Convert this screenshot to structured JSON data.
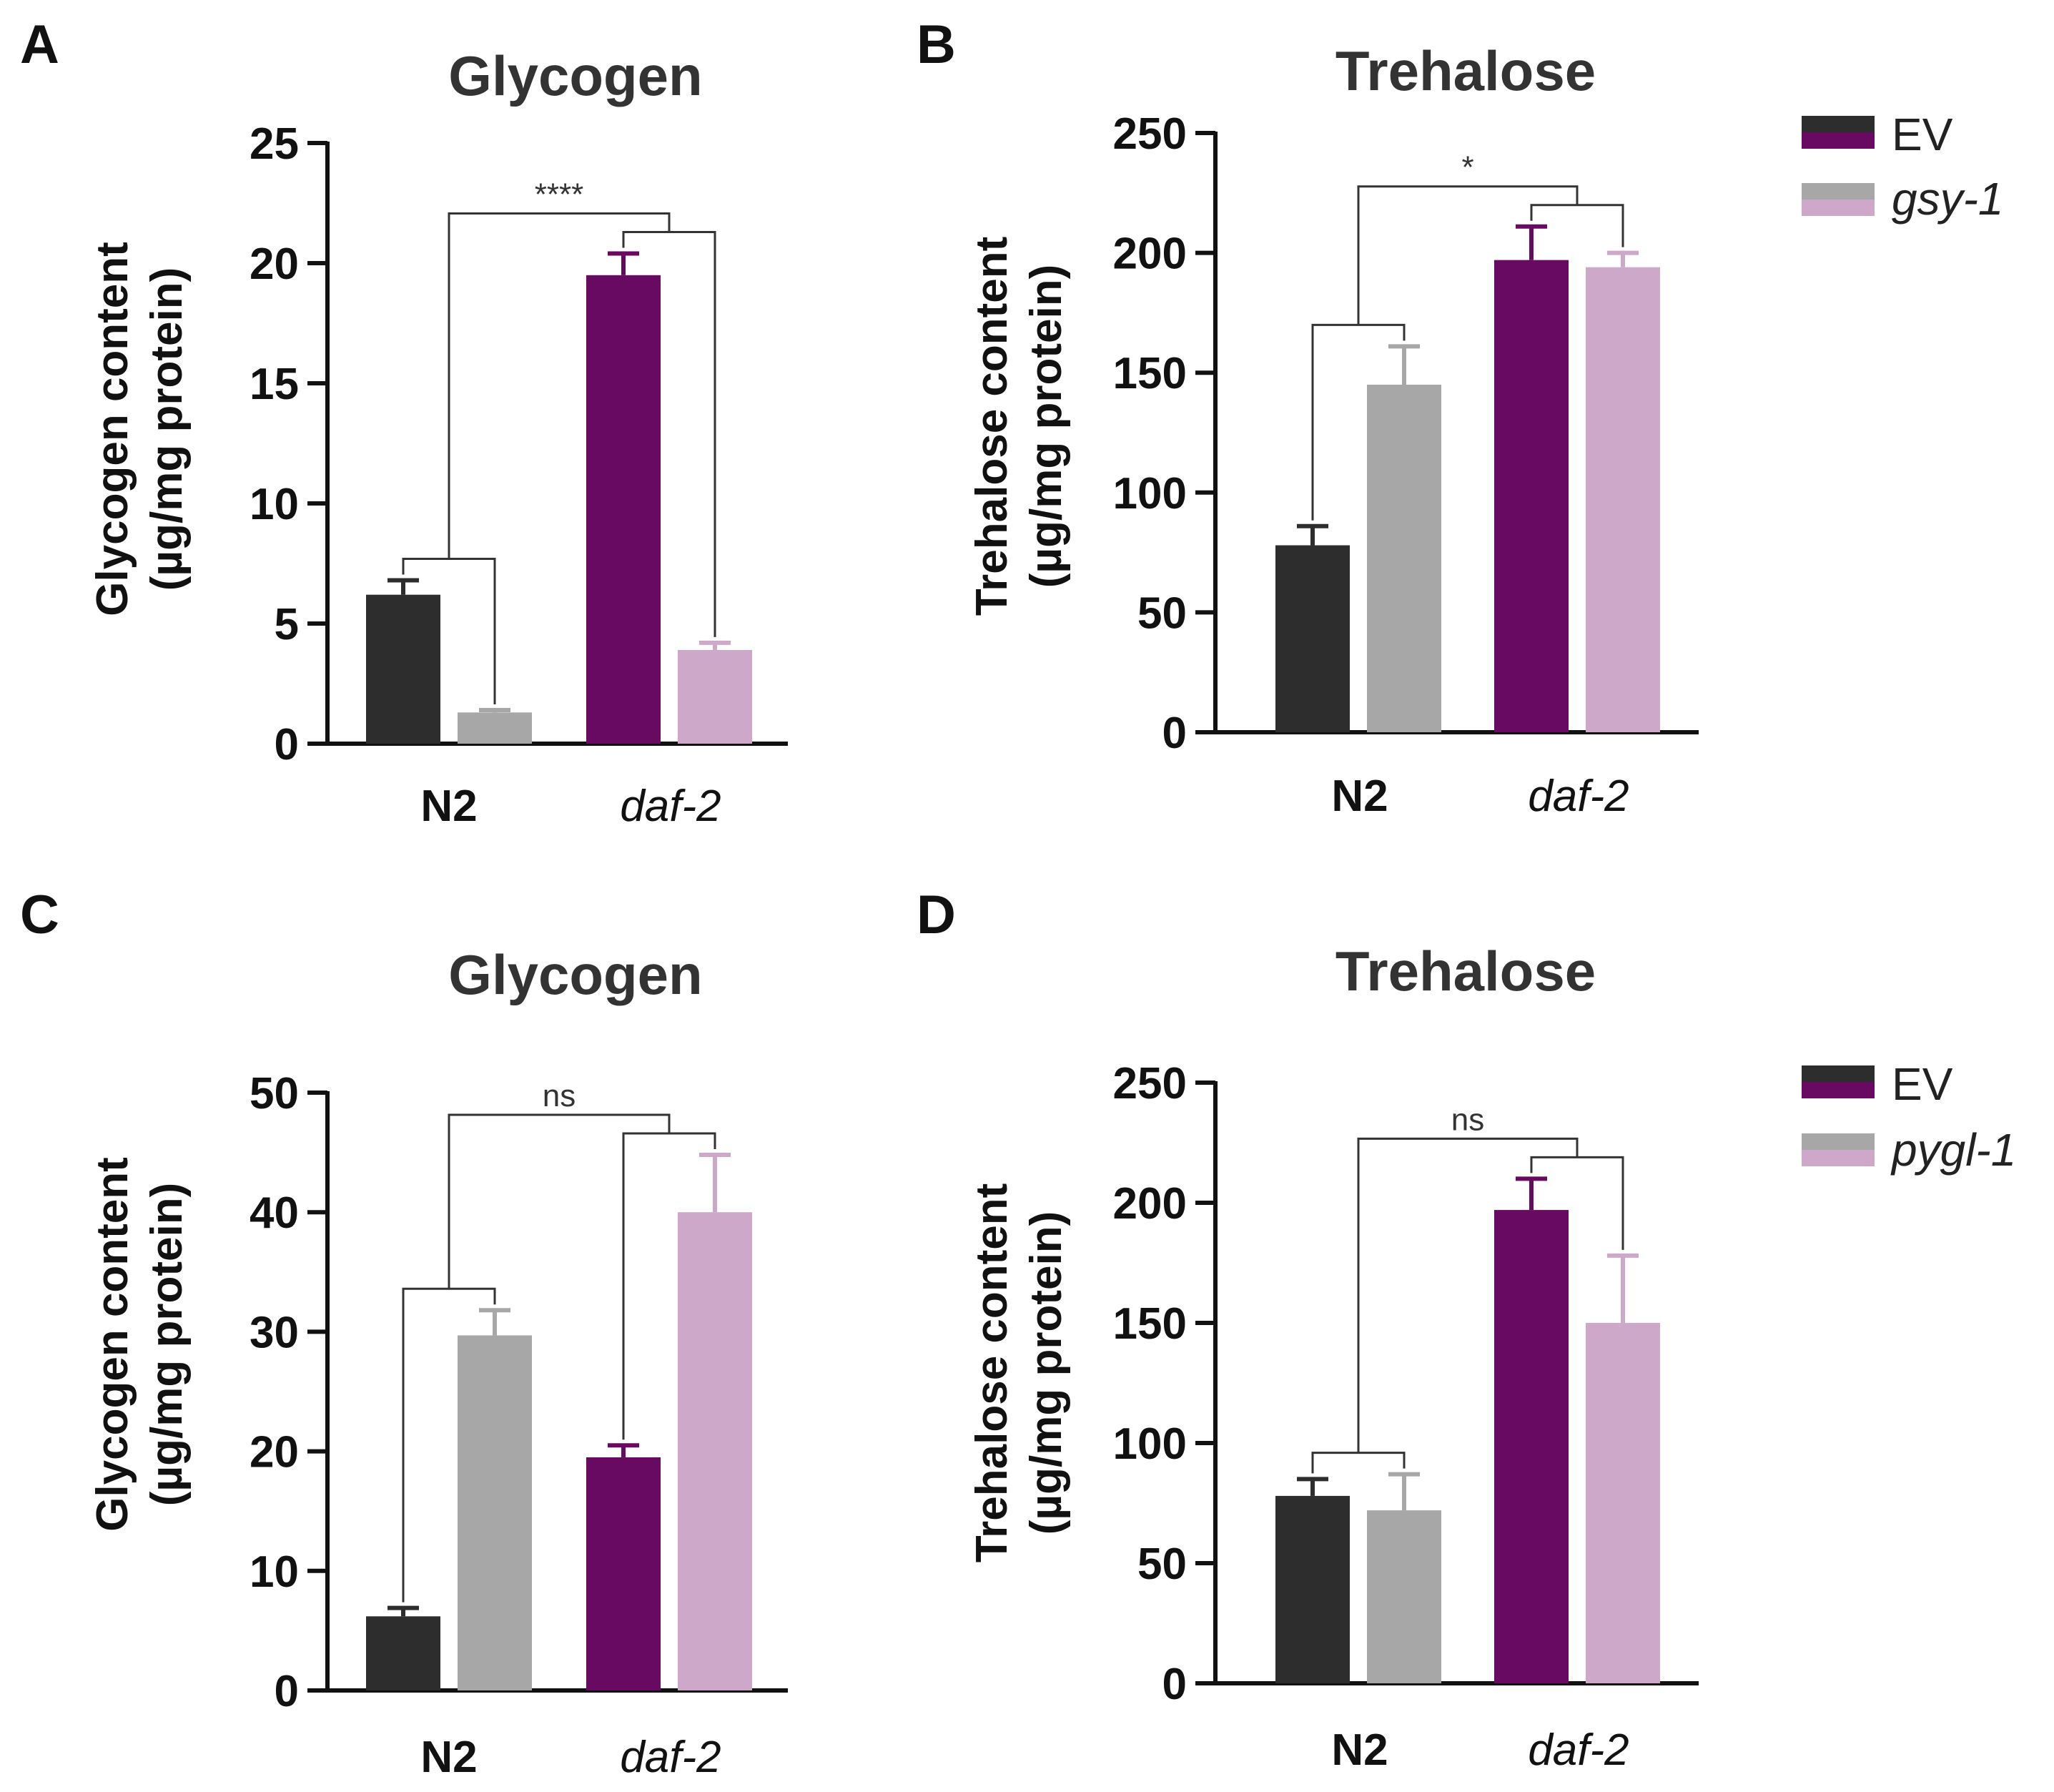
{
  "colors": {
    "n2_ev": "#2d2d2d",
    "n2_rnai": "#a7a7a7",
    "daf2_ev": "#680a62",
    "daf2_rnai": "#cda8c8",
    "axis": "#111111"
  },
  "legends": [
    {
      "ev_label": "EV",
      "rnai_label": "gsy-1"
    },
    {
      "ev_label": "EV",
      "rnai_label": "pygl-1"
    }
  ],
  "chart_data": [
    {
      "panel": "A",
      "type": "bar",
      "title": "Glycogen",
      "ylabel_line1": "Glycogen content",
      "ylabel_line2": "(µg/mg protein)",
      "ylim": [
        0,
        25
      ],
      "yticks": [
        0,
        5,
        10,
        15,
        20,
        25
      ],
      "categories": [
        "N2",
        "daf-2"
      ],
      "series": [
        {
          "name": "EV",
          "values": [
            6.2,
            19.5
          ],
          "errors": [
            0.6,
            0.9
          ]
        },
        {
          "name": "gsy-1",
          "values": [
            1.3,
            3.9
          ],
          "errors": [
            0.1,
            0.3
          ]
        }
      ],
      "significance": "****"
    },
    {
      "panel": "B",
      "type": "bar",
      "title": "Trehalose",
      "ylabel_line1": "Trehalose content",
      "ylabel_line2": "(µg/mg protein)",
      "ylim": [
        0,
        250
      ],
      "yticks": [
        0,
        50,
        100,
        150,
        200,
        250
      ],
      "categories": [
        "N2",
        "daf-2"
      ],
      "series": [
        {
          "name": "EV",
          "values": [
            78,
            197
          ],
          "errors": [
            8,
            14
          ]
        },
        {
          "name": "gsy-1",
          "values": [
            145,
            194
          ],
          "errors": [
            16,
            6
          ]
        }
      ],
      "significance": "*"
    },
    {
      "panel": "C",
      "type": "bar",
      "title": "Glycogen",
      "ylabel_line1": "Glycogen content",
      "ylabel_line2": "(µg/mg protein)",
      "ylim": [
        0,
        50
      ],
      "yticks": [
        0,
        10,
        20,
        30,
        40,
        50
      ],
      "categories": [
        "N2",
        "daf-2"
      ],
      "series": [
        {
          "name": "EV",
          "values": [
            6.2,
            19.5
          ],
          "errors": [
            0.7,
            1.0
          ]
        },
        {
          "name": "pygl-1",
          "values": [
            29.7,
            40.0
          ],
          "errors": [
            2.1,
            4.8
          ]
        }
      ],
      "significance": "ns"
    },
    {
      "panel": "D",
      "type": "bar",
      "title": "Trehalose",
      "ylabel_line1": "Trehalose content",
      "ylabel_line2": "(µg/mg protein)",
      "ylim": [
        0,
        250
      ],
      "yticks": [
        0,
        50,
        100,
        150,
        200,
        250
      ],
      "categories": [
        "N2",
        "daf-2"
      ],
      "series": [
        {
          "name": "EV",
          "values": [
            78,
            197
          ],
          "errors": [
            7,
            13
          ]
        },
        {
          "name": "pygl-1",
          "values": [
            72,
            150
          ],
          "errors": [
            15,
            28
          ]
        }
      ],
      "significance": "ns"
    }
  ]
}
